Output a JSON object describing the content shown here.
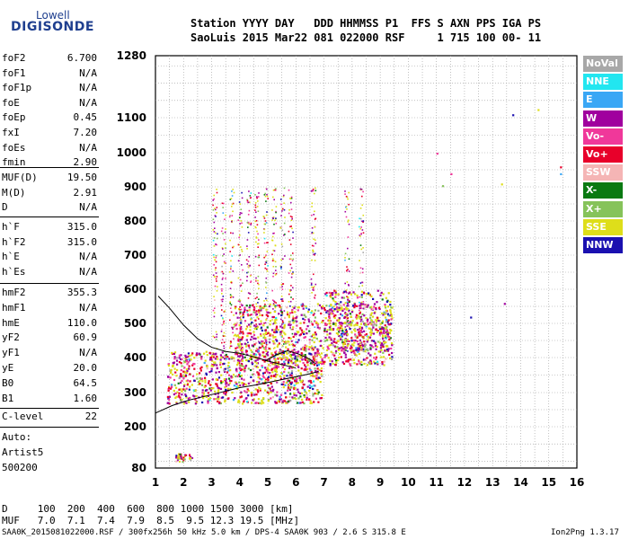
{
  "logo": {
    "line1": "Lowell",
    "line2": "DIGISONDE"
  },
  "header": {
    "row1": "Station YYYY DAY   DDD HHMMSS P1  FFS S AXN PPS IGA PS",
    "row2": "SaoLuis 2015 Mar22 081 022000 RSF     1 715 100 00- 11"
  },
  "params_group1": [
    {
      "name": "foF2",
      "value": "6.700"
    },
    {
      "name": "foF1",
      "value": "N/A"
    },
    {
      "name": "foF1p",
      "value": "N/A"
    },
    {
      "name": "foE",
      "value": "N/A"
    },
    {
      "name": "foEp",
      "value": "0.45"
    },
    {
      "name": "fxI",
      "value": "7.20"
    },
    {
      "name": "foEs",
      "value": "N/A"
    },
    {
      "name": "fmin",
      "value": "2.90"
    }
  ],
  "params_group2": [
    {
      "name": "MUF(D)",
      "value": "19.50"
    },
    {
      "name": "M(D)",
      "value": "2.91"
    },
    {
      "name": "D",
      "value": "N/A"
    }
  ],
  "params_group3": [
    {
      "name": "h`F",
      "value": "315.0"
    },
    {
      "name": "h`F2",
      "value": "315.0"
    },
    {
      "name": "h`E",
      "value": "N/A"
    },
    {
      "name": "h`Es",
      "value": "N/A"
    }
  ],
  "params_group4": [
    {
      "name": "hmF2",
      "value": "355.3"
    },
    {
      "name": "hmF1",
      "value": "N/A"
    },
    {
      "name": "hmE",
      "value": "110.0"
    },
    {
      "name": "yF2",
      "value": "60.9"
    },
    {
      "name": "yF1",
      "value": "N/A"
    },
    {
      "name": "yE",
      "value": "20.0"
    },
    {
      "name": "B0",
      "value": "64.5"
    },
    {
      "name": "B1",
      "value": "1.60"
    }
  ],
  "clevel": {
    "name": "C-level",
    "value": "22"
  },
  "autoscale": {
    "line1": "Auto:",
    "line2": "Artist5",
    "line3": "500200"
  },
  "legend": [
    {
      "label": "NoVal",
      "color": "#a8a8a8"
    },
    {
      "label": "NNE",
      "color": "#22e6f0"
    },
    {
      "label": "E",
      "color": "#3aa7f5"
    },
    {
      "label": "W",
      "color": "#a0009e"
    },
    {
      "label": "Vo-",
      "color": "#f0389a"
    },
    {
      "label": "Vo+",
      "color": "#e8002a"
    },
    {
      "label": "SSW",
      "color": "#f5b5b5"
    },
    {
      "label": "X-",
      "color": "#0a7a12"
    },
    {
      "label": "X+",
      "color": "#86c35a"
    },
    {
      "label": "SSE",
      "color": "#dede1a"
    },
    {
      "label": "NNW",
      "color": "#1a10b0"
    }
  ],
  "bottom": {
    "drow": "D     100  200  400  600  800 1000 1500 3000 [km]",
    "mufrow": "MUF   7.0  7.1  7.4  7.9  8.5  9.5 12.3 19.5 [MHz]",
    "footer_left": "SAA0K_2015081022000.RSF / 300fx256h 50 kHz 5.0 km / DPS-4 SAA0K 903 / 2.6 S 315.8 E",
    "footer_right": "Ion2Png 1.3.17"
  },
  "chart_data": {
    "type": "scatter",
    "xlim": [
      1,
      16
    ],
    "ylim": [
      80,
      1280
    ],
    "x_ticks": [
      "1",
      "2",
      "3",
      "4",
      "5",
      "6",
      "7",
      "8",
      "9",
      "10",
      "11",
      "12",
      "13",
      "14",
      "15",
      "16"
    ],
    "y_ticks": [
      {
        "value": 80,
        "label": "80"
      },
      {
        "value": 200,
        "label": "200"
      },
      {
        "value": 300,
        "label": "300"
      },
      {
        "value": 400,
        "label": "400"
      },
      {
        "value": 500,
        "label": "500"
      },
      {
        "value": 600,
        "label": "600"
      },
      {
        "value": 700,
        "label": "700"
      },
      {
        "value": 800,
        "label": "800"
      },
      {
        "value": 900,
        "label": "900"
      },
      {
        "value": 1000,
        "label": "1000"
      },
      {
        "value": 1100,
        "label": "1100"
      },
      {
        "value": 1280,
        "label": "1280"
      }
    ],
    "grid": true,
    "ionogram_traces": [
      {
        "name": "upper",
        "points": [
          [
            1.1,
            580
          ],
          [
            1.5,
            545
          ],
          [
            2.0,
            495
          ],
          [
            2.5,
            455
          ],
          [
            3.0,
            430
          ],
          [
            3.5,
            418
          ],
          [
            4.0,
            412
          ],
          [
            4.5,
            402
          ],
          [
            5.0,
            390
          ],
          [
            5.5,
            380
          ],
          [
            6.0,
            370
          ]
        ]
      },
      {
        "name": "lower",
        "points": [
          [
            1.0,
            240
          ],
          [
            1.6,
            262
          ],
          [
            2.2,
            278
          ],
          [
            2.8,
            290
          ],
          [
            3.4,
            302
          ],
          [
            4.0,
            314
          ],
          [
            4.6,
            322
          ],
          [
            5.2,
            332
          ],
          [
            5.8,
            342
          ],
          [
            6.4,
            352
          ],
          [
            6.8,
            360
          ]
        ]
      },
      {
        "name": "mid",
        "points": [
          [
            4.9,
            390
          ],
          [
            5.3,
            408
          ],
          [
            5.7,
            420
          ],
          [
            6.1,
            410
          ],
          [
            6.5,
            395
          ],
          [
            6.7,
            382
          ]
        ]
      }
    ]
  }
}
